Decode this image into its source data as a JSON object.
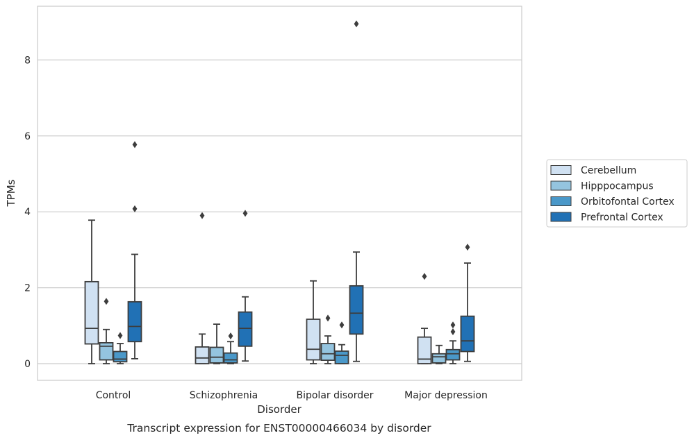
{
  "chart_data": {
    "type": "box",
    "title": "Transcript expression for ENST00000466034 by disorder",
    "xlabel": "Disorder",
    "ylabel": "TPMs",
    "ylim": [
      -0.44,
      9.4
    ],
    "yticks": [
      0,
      2,
      4,
      6,
      8
    ],
    "grid": "horizontal",
    "legend_position": "right",
    "categories": [
      "Control",
      "Schizophrenia",
      "Bipolar disorder",
      "Major depression"
    ],
    "series": [
      {
        "name": "Cerebellum",
        "color": "#d0e1f2",
        "boxes": [
          {
            "whisker_low": 0.0,
            "q1": 0.52,
            "median": 0.93,
            "q3": 2.16,
            "whisker_high": 3.78,
            "outliers": []
          },
          {
            "whisker_low": 0.0,
            "q1": 0.0,
            "median": 0.15,
            "q3": 0.44,
            "whisker_high": 0.78,
            "outliers": [
              3.9
            ]
          },
          {
            "whisker_low": 0.0,
            "q1": 0.1,
            "median": 0.38,
            "q3": 1.17,
            "whisker_high": 2.18,
            "outliers": []
          },
          {
            "whisker_low": 0.0,
            "q1": 0.0,
            "median": 0.12,
            "q3": 0.7,
            "whisker_high": 0.93,
            "outliers": [
              2.3
            ]
          }
        ]
      },
      {
        "name": "Hipppocampus",
        "color": "#94c4df",
        "boxes": [
          {
            "whisker_low": 0.0,
            "q1": 0.1,
            "median": 0.46,
            "q3": 0.55,
            "whisker_high": 0.9,
            "outliers": [
              1.64
            ]
          },
          {
            "whisker_low": 0.0,
            "q1": 0.02,
            "median": 0.17,
            "q3": 0.43,
            "whisker_high": 1.04,
            "outliers": []
          },
          {
            "whisker_low": 0.0,
            "q1": 0.09,
            "median": 0.26,
            "q3": 0.53,
            "whisker_high": 0.73,
            "outliers": [
              1.2
            ]
          },
          {
            "whisker_low": 0.0,
            "q1": 0.02,
            "median": 0.18,
            "q3": 0.26,
            "whisker_high": 0.48,
            "outliers": []
          }
        ]
      },
      {
        "name": "Orbitofontal Cortex",
        "color": "#4a98c9",
        "boxes": [
          {
            "whisker_low": 0.0,
            "q1": 0.05,
            "median": 0.12,
            "q3": 0.32,
            "whisker_high": 0.53,
            "outliers": [
              0.74
            ]
          },
          {
            "whisker_low": 0.0,
            "q1": 0.02,
            "median": 0.1,
            "q3": 0.28,
            "whisker_high": 0.58,
            "outliers": [
              0.73
            ]
          },
          {
            "whisker_low": 0.0,
            "q1": 0.0,
            "median": 0.22,
            "q3": 0.33,
            "whisker_high": 0.5,
            "outliers": [
              1.02
            ]
          },
          {
            "whisker_low": 0.0,
            "q1": 0.1,
            "median": 0.26,
            "q3": 0.37,
            "whisker_high": 0.6,
            "outliers": [
              0.84,
              1.02
            ]
          }
        ]
      },
      {
        "name": "Prefrontal Cortex",
        "color": "#2171b5",
        "boxes": [
          {
            "whisker_low": 0.13,
            "q1": 0.58,
            "median": 0.98,
            "q3": 1.63,
            "whisker_high": 2.88,
            "outliers": [
              4.08,
              5.77
            ]
          },
          {
            "whisker_low": 0.07,
            "q1": 0.46,
            "median": 0.93,
            "q3": 1.36,
            "whisker_high": 1.76,
            "outliers": [
              3.96
            ]
          },
          {
            "whisker_low": 0.06,
            "q1": 0.78,
            "median": 1.33,
            "q3": 2.05,
            "whisker_high": 2.94,
            "outliers": [
              8.95
            ]
          },
          {
            "whisker_low": 0.06,
            "q1": 0.32,
            "median": 0.6,
            "q3": 1.25,
            "whisker_high": 2.65,
            "outliers": [
              3.07
            ]
          }
        ]
      }
    ]
  }
}
